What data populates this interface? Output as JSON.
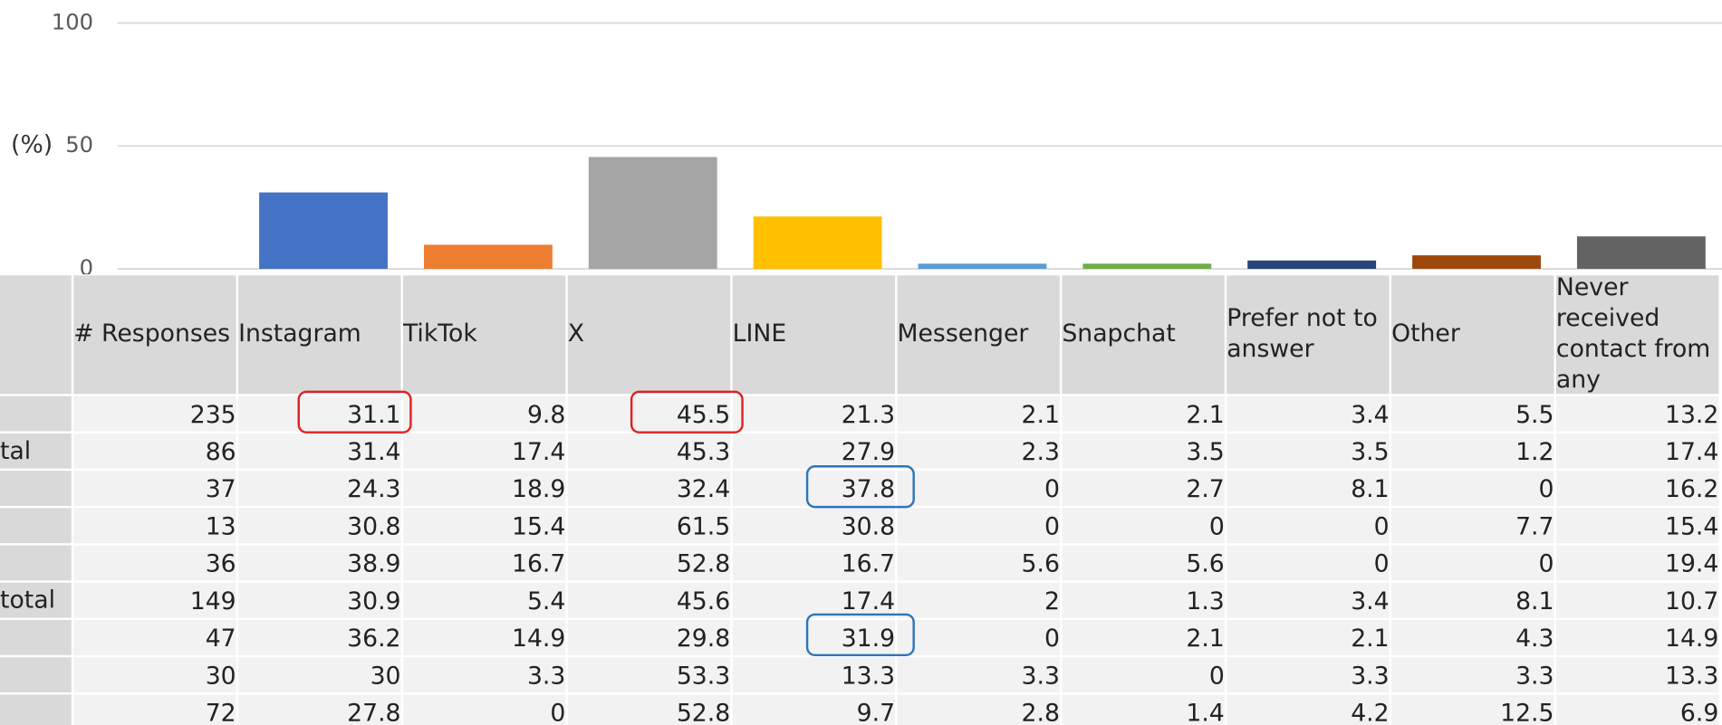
{
  "chart_data": {
    "type": "bar",
    "ylabel": "(%)",
    "values": [
      31.1,
      9.8,
      45.5,
      21.3,
      2.1,
      2.1,
      3.4,
      5.5,
      13.2
    ],
    "colors": [
      "#4472c4",
      "#ed7d31",
      "#a5a5a5",
      "#ffc000",
      "#5b9bd5",
      "#70ad47",
      "#264478",
      "#9e480e",
      "#636363"
    ],
    "ylim": [
      0,
      100
    ],
    "yticks": [
      0,
      50,
      100
    ],
    "grid": true
  },
  "table": {
    "headers": [
      "# Responses",
      "Instagram",
      "TikTok",
      "X",
      "LINE",
      "Messenger",
      "Snapchat",
      "Prefer not to answer",
      "Other",
      "Never received contact from any"
    ],
    "row_labels": [
      null,
      "tal",
      null,
      null,
      null,
      "total",
      null,
      null,
      null
    ],
    "rows": [
      [
        235,
        31.1,
        9.8,
        45.5,
        21.3,
        2.1,
        2.1,
        3.4,
        5.5,
        13.2
      ],
      [
        86,
        31.4,
        17.4,
        45.3,
        27.9,
        2.3,
        3.5,
        3.5,
        1.2,
        17.4
      ],
      [
        37,
        24.3,
        18.9,
        32.4,
        37.8,
        0,
        2.7,
        8.1,
        0,
        16.2
      ],
      [
        13,
        30.8,
        15.4,
        61.5,
        30.8,
        0,
        0,
        0,
        7.7,
        15.4
      ],
      [
        36,
        38.9,
        16.7,
        52.8,
        16.7,
        5.6,
        5.6,
        0,
        0,
        19.4
      ],
      [
        149,
        30.9,
        5.4,
        45.6,
        17.4,
        2,
        1.3,
        3.4,
        8.1,
        10.7
      ],
      [
        47,
        36.2,
        14.9,
        29.8,
        31.9,
        0,
        2.1,
        2.1,
        4.3,
        14.9
      ],
      [
        30,
        30,
        3.3,
        53.3,
        13.3,
        3.3,
        0,
        3.3,
        3.3,
        13.3
      ],
      [
        72,
        27.8,
        0,
        52.8,
        9.7,
        2.8,
        1.4,
        4.2,
        12.5,
        6.9
      ]
    ]
  }
}
